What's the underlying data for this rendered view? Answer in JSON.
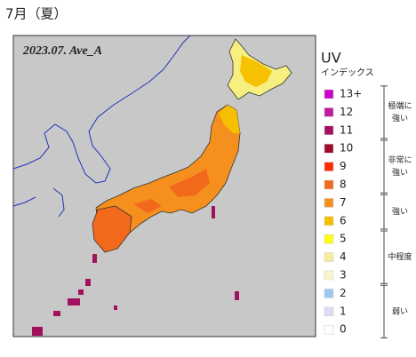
{
  "header": {
    "title": "7月（夏）"
  },
  "map": {
    "label": "2023.07. Ave_A"
  },
  "legend": {
    "title": "UV",
    "subtitle": "インデックス",
    "items": [
      {
        "label": "13+",
        "color": "#c800c8"
      },
      {
        "label": "12",
        "color": "#c21a9c"
      },
      {
        "label": "11",
        "color": "#a3105e"
      },
      {
        "label": "10",
        "color": "#a00a28"
      },
      {
        "label": "9",
        "color": "#ff2a00"
      },
      {
        "label": "8",
        "color": "#f2691c"
      },
      {
        "label": "7",
        "color": "#f5901e"
      },
      {
        "label": "6",
        "color": "#f6bf00"
      },
      {
        "label": "5",
        "color": "#ffff10"
      },
      {
        "label": "4",
        "color": "#f6ef9a"
      },
      {
        "label": "3",
        "color": "#fbf7cc"
      },
      {
        "label": "2",
        "color": "#9cc8f5"
      },
      {
        "label": "1",
        "color": "#dcdcf5"
      },
      {
        "label": "0",
        "color": "#ffffff"
      }
    ],
    "groups": [
      {
        "lines": [
          "極端に",
          "強い"
        ],
        "first": 0,
        "last": 2
      },
      {
        "lines": [
          "非常に",
          "強い"
        ],
        "first": 3,
        "last": 5
      },
      {
        "lines": [
          "強い"
        ],
        "first": 6,
        "last": 7
      },
      {
        "lines": [
          "中程度"
        ],
        "first": 8,
        "last": 10
      },
      {
        "lines": [
          "弱い"
        ],
        "first": 11,
        "last": 13
      }
    ]
  }
}
